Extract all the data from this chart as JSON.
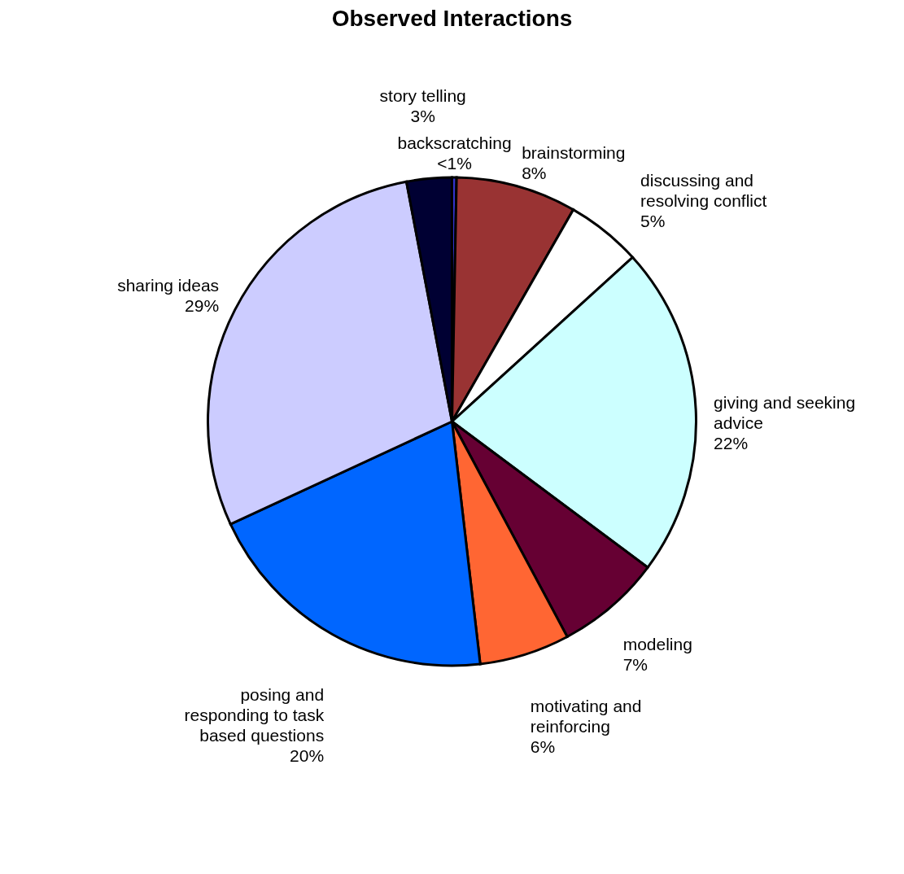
{
  "chart_data": {
    "type": "pie",
    "title": "Observed Interactions",
    "categories": [
      "backscratching",
      "brainstorming",
      "discussing and resolving conflict",
      "giving and seeking advice",
      "modeling",
      "motivating and reinforcing",
      "posing and responding to task based questions",
      "sharing ideas",
      "story telling"
    ],
    "values": [
      0.3,
      8,
      5,
      22,
      7,
      6,
      20,
      29,
      3
    ],
    "value_labels": [
      "<1%",
      "8%",
      "5%",
      "22%",
      "7%",
      "6%",
      "20%",
      "29%",
      "3%"
    ],
    "colors": [
      "#3333cc",
      "#993333",
      "#ffffff",
      "#ccffff",
      "#660033",
      "#ff6633",
      "#0066ff",
      "#ccccff",
      "#000033"
    ]
  }
}
